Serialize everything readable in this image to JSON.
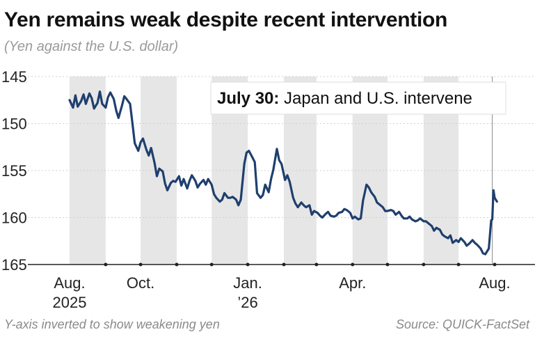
{
  "title": "Yen remains weak despite recent intervention",
  "subtitle": "(Yen against the U.S. dollar)",
  "footnote": "Y-axis inverted to show weakening yen",
  "source": "Source: QUICK-FactSet",
  "annotation": {
    "bold": "July 30:",
    "text": " Japan and U.S. intervene"
  },
  "colors": {
    "line": "#1f3f6e",
    "band": "#e6e6e6",
    "grid": "#cfcfcf",
    "axis": "#222222",
    "marker": "#888888"
  },
  "chart_data": {
    "type": "line",
    "title": "Yen remains weak despite recent intervention",
    "ylabel": "Yen against the U.S. dollar",
    "y_inverted": true,
    "ylim": [
      145,
      165
    ],
    "yticks": [
      145,
      150,
      155,
      160,
      165
    ],
    "grid": true,
    "x_axis": {
      "start": "2025-08-01",
      "end": "2026-08-04",
      "tick_labels": [
        {
          "date": "2025-08-01",
          "lines": [
            "Aug.",
            "2025"
          ]
        },
        {
          "date": "2025-10-01",
          "lines": [
            "Oct."
          ]
        },
        {
          "date": "2026-01-01",
          "lines": [
            "Jan.",
            "’26"
          ]
        },
        {
          "date": "2026-04-01",
          "lines": [
            "Apr."
          ]
        },
        {
          "date": "2026-08-01",
          "lines": [
            "Aug."
          ]
        }
      ],
      "tick_marks": [
        "2025-09-01",
        "2025-10-01",
        "2025-11-01",
        "2025-12-01",
        "2026-01-01",
        "2026-02-01",
        "2026-03-01",
        "2026-04-01",
        "2026-05-01",
        "2026-06-01",
        "2026-07-01",
        "2026-08-01"
      ]
    },
    "shaded_months": [
      [
        "2025-08-01",
        "2025-09-01"
      ],
      [
        "2025-10-01",
        "2025-11-01"
      ],
      [
        "2025-12-01",
        "2026-01-01"
      ],
      [
        "2026-02-01",
        "2026-03-01"
      ],
      [
        "2026-04-01",
        "2026-05-01"
      ],
      [
        "2026-06-01",
        "2026-07-01"
      ]
    ],
    "event_marker": {
      "date": "2026-07-30",
      "label": "July 30: Japan and U.S. intervene"
    },
    "series": [
      {
        "x": [
          "2025-08-01",
          "2025-08-04",
          "2025-08-06",
          "2025-08-08",
          "2025-08-11",
          "2025-08-13",
          "2025-08-15",
          "2025-08-18",
          "2025-08-20",
          "2025-08-22",
          "2025-08-25",
          "2025-08-27",
          "2025-08-29",
          "2025-09-01",
          "2025-09-03",
          "2025-09-05",
          "2025-09-08",
          "2025-09-10",
          "2025-09-12",
          "2025-09-15",
          "2025-09-17",
          "2025-09-19",
          "2025-09-22",
          "2025-09-24",
          "2025-09-26",
          "2025-09-29",
          "2025-10-01",
          "2025-10-03",
          "2025-10-06",
          "2025-10-08",
          "2025-10-10",
          "2025-10-13",
          "2025-10-15",
          "2025-10-17",
          "2025-10-20",
          "2025-10-22",
          "2025-10-24",
          "2025-10-27",
          "2025-10-29",
          "2025-10-31",
          "2025-11-03",
          "2025-11-05",
          "2025-11-07",
          "2025-11-10",
          "2025-11-12",
          "2025-11-14",
          "2025-11-17",
          "2025-11-19",
          "2025-11-21",
          "2025-11-24",
          "2025-11-26",
          "2025-11-28",
          "2025-12-01",
          "2025-12-03",
          "2025-12-05",
          "2025-12-08",
          "2025-12-10",
          "2025-12-12",
          "2025-12-15",
          "2025-12-17",
          "2025-12-19",
          "2025-12-22",
          "2025-12-24",
          "2025-12-26",
          "2025-12-29",
          "2025-12-31",
          "2026-01-02",
          "2026-01-05",
          "2026-01-07",
          "2026-01-09",
          "2026-01-12",
          "2026-01-14",
          "2026-01-16",
          "2026-01-19",
          "2026-01-21",
          "2026-01-23",
          "2026-01-26",
          "2026-01-28",
          "2026-01-30",
          "2026-02-02",
          "2026-02-04",
          "2026-02-06",
          "2026-02-09",
          "2026-02-11",
          "2026-02-13",
          "2026-02-16",
          "2026-02-18",
          "2026-02-20",
          "2026-02-23",
          "2026-02-25",
          "2026-02-27",
          "2026-03-02",
          "2026-03-04",
          "2026-03-06",
          "2026-03-09",
          "2026-03-11",
          "2026-03-13",
          "2026-03-16",
          "2026-03-18",
          "2026-03-20",
          "2026-03-23",
          "2026-03-25",
          "2026-03-27",
          "2026-03-30",
          "2026-04-01",
          "2026-04-03",
          "2026-04-06",
          "2026-04-08",
          "2026-04-10",
          "2026-04-13",
          "2026-04-15",
          "2026-04-17",
          "2026-04-20",
          "2026-04-22",
          "2026-04-24",
          "2026-04-27",
          "2026-04-29",
          "2026-05-01",
          "2026-05-04",
          "2026-05-06",
          "2026-05-08",
          "2026-05-11",
          "2026-05-13",
          "2026-05-15",
          "2026-05-18",
          "2026-05-20",
          "2026-05-22",
          "2026-05-25",
          "2026-05-27",
          "2026-05-29",
          "2026-06-01",
          "2026-06-03",
          "2026-06-05",
          "2026-06-08",
          "2026-06-10",
          "2026-06-12",
          "2026-06-15",
          "2026-06-17",
          "2026-06-19",
          "2026-06-22",
          "2026-06-24",
          "2026-06-26",
          "2026-06-29",
          "2026-07-01",
          "2026-07-03",
          "2026-07-06",
          "2026-07-08",
          "2026-07-10",
          "2026-07-13",
          "2026-07-15",
          "2026-07-17",
          "2026-07-20",
          "2026-07-22",
          "2026-07-24",
          "2026-07-27",
          "2026-07-29",
          "2026-07-30",
          "2026-07-31",
          "2026-08-01",
          "2026-08-03"
        ],
        "y": [
          147.5,
          148.3,
          147.0,
          148.2,
          147.6,
          146.9,
          147.9,
          146.8,
          147.3,
          148.4,
          147.8,
          146.6,
          147.9,
          148.3,
          147.2,
          146.7,
          147.4,
          148.6,
          149.4,
          148.1,
          147.1,
          147.4,
          147.9,
          150.0,
          152.1,
          152.9,
          152.0,
          151.6,
          152.8,
          153.4,
          152.6,
          154.2,
          155.6,
          154.8,
          155.1,
          156.4,
          157.1,
          156.3,
          156.1,
          156.2,
          155.6,
          156.6,
          155.9,
          156.9,
          156.1,
          155.5,
          156.1,
          156.8,
          156.4,
          156.0,
          156.5,
          155.9,
          156.5,
          157.5,
          157.9,
          158.3,
          158.1,
          157.4,
          157.9,
          157.9,
          157.8,
          158.1,
          158.7,
          158.1,
          154.3,
          153.1,
          152.9,
          153.6,
          154.1,
          157.4,
          157.9,
          157.6,
          156.5,
          157.3,
          155.9,
          154.9,
          152.7,
          153.9,
          154.3,
          156.0,
          155.5,
          156.2,
          157.9,
          158.5,
          158.9,
          158.4,
          158.7,
          158.9,
          158.7,
          159.7,
          159.3,
          159.5,
          159.8,
          160.0,
          159.6,
          159.4,
          159.8,
          159.9,
          159.8,
          159.5,
          159.4,
          159.1,
          159.2,
          159.5,
          160.1,
          159.9,
          160.2,
          160.1,
          158.2,
          156.5,
          156.8,
          157.3,
          157.8,
          158.4,
          158.6,
          158.9,
          159.3,
          159.3,
          159.2,
          159.3,
          159.7,
          159.4,
          159.8,
          160.1,
          160.1,
          159.9,
          160.2,
          160.4,
          160.3,
          160.1,
          160.4,
          160.4,
          160.6,
          160.9,
          161.4,
          161.1,
          161.3,
          161.8,
          162.0,
          162.2,
          161.9,
          162.7,
          162.4,
          162.6,
          162.2,
          162.6,
          163.0,
          162.8,
          162.4,
          162.7,
          162.9,
          163.3,
          163.8,
          163.9,
          163.3,
          160.3,
          160.2,
          157.1,
          157.9,
          158.3
        ]
      }
    ]
  }
}
